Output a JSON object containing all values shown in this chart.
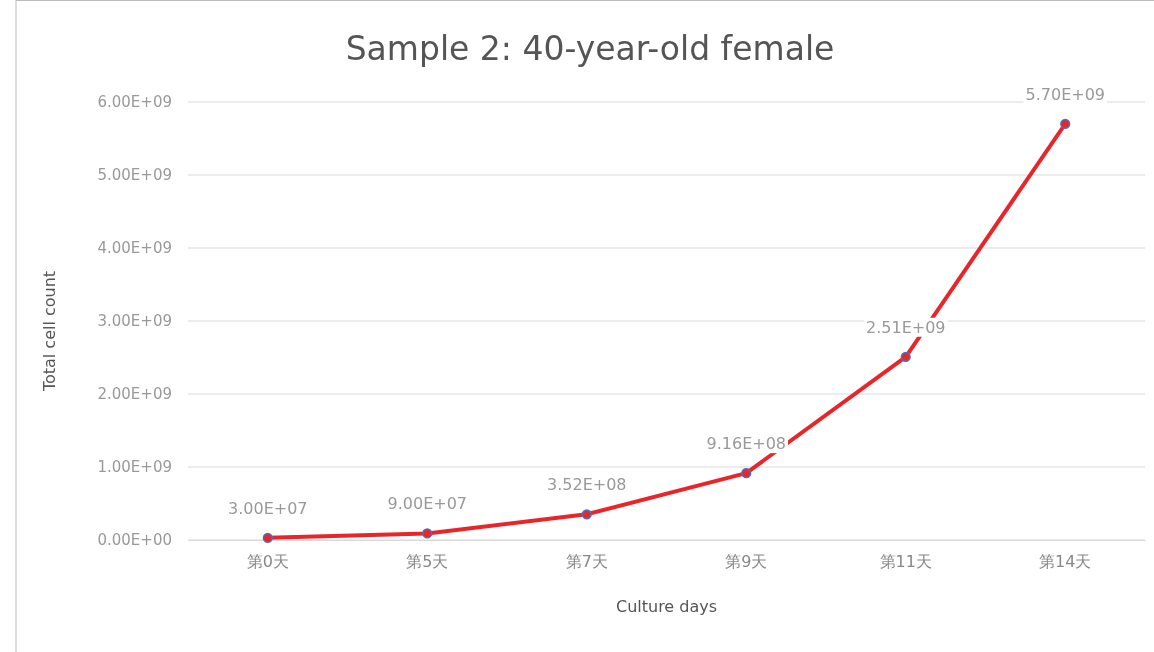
{
  "chart_data": {
    "type": "line",
    "title": "Sample 2: 40-year-old female",
    "xlabel": "Culture days",
    "ylabel": "Total cell count",
    "categories": [
      "第0天",
      "第5天",
      "第7天",
      "第9天",
      "第11天",
      "第14天"
    ],
    "series": [
      {
        "color": "#e8262a",
        "values": [
          30000000,
          90000000,
          352000000,
          916000000,
          2510000000,
          5700000000
        ],
        "value_labels": [
          "3.00E+07",
          "9.00E+07",
          "3.52E+08",
          "9.16E+08",
          "2.51E+09",
          "5.70E+09"
        ]
      }
    ],
    "ylim": [
      0,
      6000000000
    ],
    "yticks": [
      {
        "value": 0,
        "label": "0.00E+00"
      },
      {
        "value": 1000000000,
        "label": "1.00E+09"
      },
      {
        "value": 2000000000,
        "label": "2.00E+09"
      },
      {
        "value": 3000000000,
        "label": "3.00E+09"
      },
      {
        "value": 4000000000,
        "label": "4.00E+09"
      },
      {
        "value": 5000000000,
        "label": "5.00E+09"
      },
      {
        "value": 6000000000,
        "label": "6.00E+09"
      }
    ],
    "grid": "y",
    "marker": "circle",
    "line_style": "solid"
  }
}
